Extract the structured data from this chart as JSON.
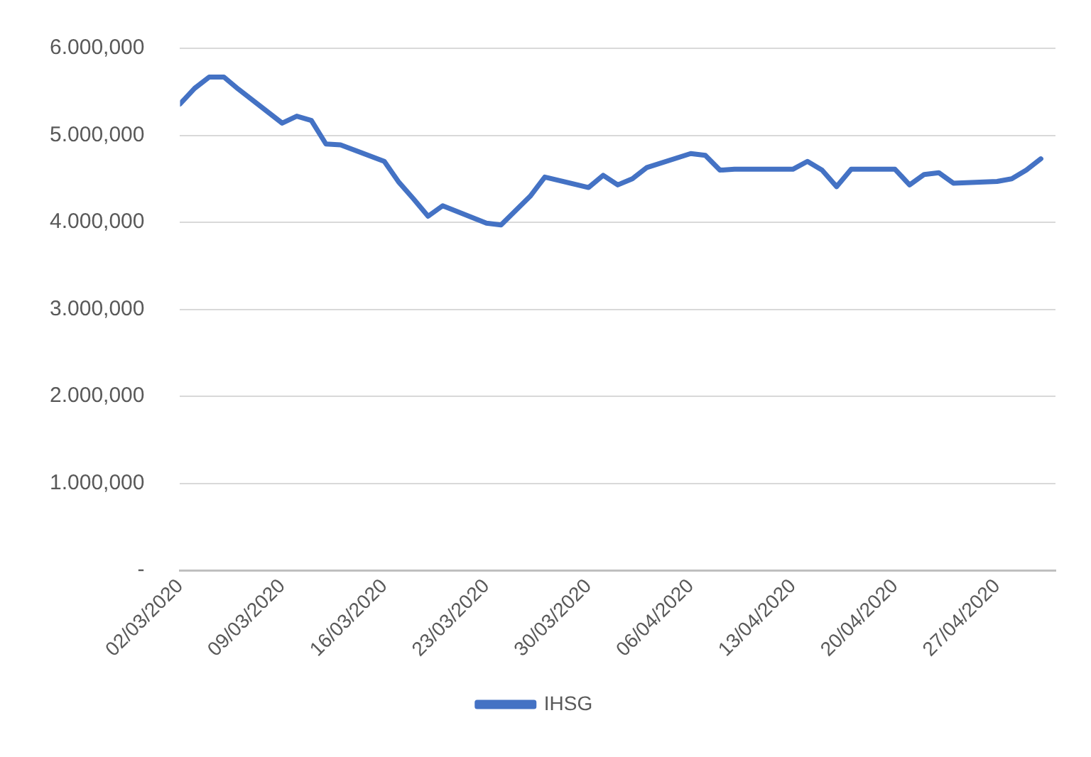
{
  "chart_data": {
    "type": "line",
    "x": [
      "2020-03-02",
      "2020-03-03",
      "2020-03-04",
      "2020-03-05",
      "2020-03-06",
      "2020-03-09",
      "2020-03-10",
      "2020-03-11",
      "2020-03-12",
      "2020-03-13",
      "2020-03-16",
      "2020-03-17",
      "2020-03-18",
      "2020-03-19",
      "2020-03-20",
      "2020-03-23",
      "2020-03-24",
      "2020-03-26",
      "2020-03-27",
      "2020-03-30",
      "2020-03-31",
      "2020-04-01",
      "2020-04-02",
      "2020-04-03",
      "2020-04-06",
      "2020-04-07",
      "2020-04-08",
      "2020-04-09",
      "2020-04-13",
      "2020-04-14",
      "2020-04-15",
      "2020-04-16",
      "2020-04-17",
      "2020-04-20",
      "2020-04-21",
      "2020-04-22",
      "2020-04-23",
      "2020-04-24",
      "2020-04-27",
      "2020-04-28",
      "2020-04-29",
      "2020-04-30"
    ],
    "series": [
      {
        "name": "IHSG",
        "color": "#4472c4",
        "values": [
          5360,
          5540,
          5670,
          5670,
          5530,
          5140,
          5220,
          5170,
          4900,
          4890,
          4700,
          4460,
          4270,
          4070,
          4190,
          3990,
          3970,
          4300,
          4520,
          4400,
          4540,
          4430,
          4500,
          4630,
          4790,
          4770,
          4600,
          4610,
          4610,
          4700,
          4600,
          4410,
          4610,
          4610,
          4430,
          4550,
          4570,
          4450,
          4470,
          4500,
          4600,
          4730
        ]
      }
    ],
    "xlim": [
      "2020-03-02",
      "2020-05-01"
    ],
    "xticks": [
      {
        "value": "2020-03-02",
        "label": "02/03/2020"
      },
      {
        "value": "2020-03-09",
        "label": "09/03/2020"
      },
      {
        "value": "2020-03-16",
        "label": "16/03/2020"
      },
      {
        "value": "2020-03-23",
        "label": "23/03/2020"
      },
      {
        "value": "2020-03-30",
        "label": "30/03/2020"
      },
      {
        "value": "2020-04-06",
        "label": "06/04/2020"
      },
      {
        "value": "2020-04-13",
        "label": "13/04/2020"
      },
      {
        "value": "2020-04-20",
        "label": "20/04/2020"
      },
      {
        "value": "2020-04-27",
        "label": "27/04/2020"
      }
    ],
    "ylim": [
      0,
      6000
    ],
    "yticks": [
      {
        "value": 0,
        "label": "-"
      },
      {
        "value": 1000,
        "label": "1.000,000"
      },
      {
        "value": 2000,
        "label": "2.000,000"
      },
      {
        "value": 3000,
        "label": "3.000,000"
      },
      {
        "value": 4000,
        "label": "4.000,000"
      },
      {
        "value": 5000,
        "label": "5.000,000"
      },
      {
        "value": 6000,
        "label": "6.000,000"
      }
    ],
    "grid": "y",
    "legend": "bottom",
    "marker": "none",
    "line_style": "solid"
  }
}
